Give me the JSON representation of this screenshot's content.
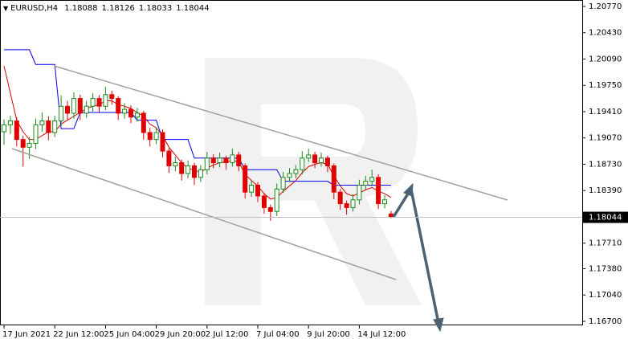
{
  "chart_data": {
    "type": "candlestick",
    "symbol": "EURUSD,H4",
    "up_color": "#1a8a1a",
    "down_color": "#e00000",
    "ylim": [
      1.16648,
      1.20853
    ],
    "yticks": [
      {
        "value": 1.2077,
        "label": "1.20770"
      },
      {
        "value": 1.2043,
        "label": "1.20430"
      },
      {
        "value": 1.2009,
        "label": "1.20090"
      },
      {
        "value": 1.1975,
        "label": "1.19750"
      },
      {
        "value": 1.1941,
        "label": "1.19410"
      },
      {
        "value": 1.1907,
        "label": "1.19070"
      },
      {
        "value": 1.1873,
        "label": "1.18730"
      },
      {
        "value": 1.1839,
        "label": "1.18390"
      },
      {
        "value": 1.1771,
        "label": "1.17710"
      },
      {
        "value": 1.1738,
        "label": "1.17380"
      },
      {
        "value": 1.1704,
        "label": "1.17040"
      },
      {
        "value": 1.167,
        "label": "1.16700"
      }
    ],
    "xticks": [
      {
        "value": 0,
        "label": "17 Jun 2021"
      },
      {
        "value": 8,
        "label": "22 Jun 12:00"
      },
      {
        "value": 16,
        "label": "25 Jun 04:00"
      },
      {
        "value": 24,
        "label": "29 Jun 20:00"
      },
      {
        "value": 32,
        "label": "2 Jul 12:00"
      },
      {
        "value": 40,
        "label": "7 Jul 04:00"
      },
      {
        "value": 48,
        "label": "9 Jul 20:00"
      },
      {
        "value": 56,
        "label": "14 Jul 12:00"
      }
    ],
    "open": [
      1.1915,
      1.1924,
      1.1929,
      1.1905,
      1.1895,
      1.19,
      1.1924,
      1.1929,
      1.1914,
      1.1929,
      1.1948,
      1.1939,
      1.1958,
      1.1939,
      1.1948,
      1.1958,
      1.1948,
      1.1963,
      1.1958,
      1.1939,
      1.1944,
      1.1934,
      1.1939,
      1.1914,
      1.1905,
      1.1914,
      1.189,
      1.1871,
      1.1875,
      1.1861,
      1.1871,
      1.1856,
      1.1866,
      1.1881,
      1.1875,
      1.1881,
      1.1875,
      1.1885,
      1.1871,
      1.1837,
      1.1846,
      1.1832,
      1.1817,
      1.1812,
      1.1841,
      1.1856,
      1.1861,
      1.1866,
      1.1881,
      1.1885,
      1.1875,
      1.1881,
      1.1871,
      1.1837,
      1.1822,
      1.1817,
      1.1827,
      1.1846,
      1.1851,
      1.1856,
      1.1822,
      1.18088
    ],
    "high": [
      1.1931,
      1.1936,
      1.1934,
      1.191,
      1.1908,
      1.1932,
      1.194,
      1.1935,
      1.1936,
      1.1962,
      1.1955,
      1.1966,
      1.1963,
      1.1955,
      1.1965,
      1.1962,
      1.1973,
      1.1968,
      1.1961,
      1.1952,
      1.1949,
      1.1946,
      1.1942,
      1.192,
      1.1921,
      1.1918,
      1.1894,
      1.1883,
      1.1879,
      1.1878,
      1.1875,
      1.1872,
      1.1889,
      1.1886,
      1.1888,
      1.1884,
      1.1893,
      1.1889,
      1.1874,
      1.1853,
      1.185,
      1.1836,
      1.1821,
      1.1848,
      1.1863,
      1.1868,
      1.1872,
      1.189,
      1.1893,
      1.1889,
      1.1888,
      1.1884,
      1.1874,
      1.1841,
      1.1826,
      1.1834,
      1.1853,
      1.1858,
      1.1866,
      1.186,
      1.1833,
      1.18126
    ],
    "low": [
      1.1898,
      1.1912,
      1.1896,
      1.187,
      1.188,
      1.1893,
      1.1915,
      1.1904,
      1.1908,
      1.1922,
      1.193,
      1.1932,
      1.193,
      1.1933,
      1.1941,
      1.194,
      1.1943,
      1.195,
      1.193,
      1.1932,
      1.1926,
      1.1928,
      1.1905,
      1.1896,
      1.1899,
      1.1882,
      1.1862,
      1.1864,
      1.1852,
      1.1855,
      1.1846,
      1.185,
      1.186,
      1.1868,
      1.1869,
      1.1866,
      1.187,
      1.1864,
      1.1829,
      1.1831,
      1.1824,
      1.1809,
      1.18,
      1.1806,
      1.1836,
      1.185,
      1.1855,
      1.186,
      1.1876,
      1.1868,
      1.187,
      1.1863,
      1.1828,
      1.1814,
      1.1808,
      1.1812,
      1.1821,
      1.184,
      1.1845,
      1.1815,
      1.1816,
      1.18033
    ],
    "close": [
      1.1924,
      1.1929,
      1.1905,
      1.1895,
      1.19,
      1.1924,
      1.1929,
      1.1914,
      1.1929,
      1.1948,
      1.1939,
      1.1958,
      1.1939,
      1.1948,
      1.1958,
      1.1948,
      1.1963,
      1.1958,
      1.1939,
      1.1944,
      1.1934,
      1.1939,
      1.1914,
      1.1905,
      1.1914,
      1.189,
      1.1871,
      1.1875,
      1.1861,
      1.1871,
      1.1856,
      1.1866,
      1.1881,
      1.1875,
      1.1881,
      1.1875,
      1.1885,
      1.1871,
      1.1837,
      1.1846,
      1.1832,
      1.1817,
      1.1812,
      1.1841,
      1.1856,
      1.1861,
      1.1866,
      1.1881,
      1.1885,
      1.1875,
      1.1881,
      1.1871,
      1.1837,
      1.1822,
      1.1817,
      1.1827,
      1.1846,
      1.1851,
      1.1856,
      1.1822,
      1.1827,
      1.18044
    ],
    "indicator_lines": [
      {
        "color": "#e00000",
        "values": [
          1.2,
          1.1965,
          1.193,
          1.1915,
          1.1905,
          1.1905,
          1.191,
          1.1915,
          1.1915,
          1.1925,
          1.193,
          1.1935,
          1.194,
          1.1945,
          1.1948,
          1.195,
          1.1955,
          1.1955,
          1.195,
          1.1948,
          1.1945,
          1.194,
          1.1935,
          1.1925,
          1.192,
          1.191,
          1.1895,
          1.1885,
          1.1875,
          1.1868,
          1.1865,
          1.1863,
          1.1868,
          1.1872,
          1.1875,
          1.1876,
          1.1878,
          1.1876,
          1.186,
          1.1852,
          1.1845,
          1.1835,
          1.1828,
          1.183,
          1.1838,
          1.1845,
          1.1852,
          1.1862,
          1.187,
          1.1873,
          1.1875,
          1.1873,
          1.1858,
          1.1845,
          1.1835,
          1.1832,
          1.1836,
          1.184,
          1.1843,
          1.1838,
          1.1835,
          1.183
        ]
      },
      {
        "color": "#0000ee",
        "values": [
          1.2021,
          1.2021,
          1.2021,
          1.2021,
          1.2021,
          1.2002,
          1.2002,
          1.2002,
          1.2002,
          1.1919,
          1.1919,
          1.1919,
          1.194,
          1.194,
          1.194,
          1.194,
          1.194,
          1.194,
          1.194,
          1.194,
          1.194,
          1.193,
          1.193,
          1.193,
          1.193,
          1.1905,
          1.1905,
          1.1905,
          1.1905,
          1.1905,
          1.1881,
          1.1881,
          1.1881,
          1.1881,
          1.1881,
          1.1881,
          1.1881,
          1.1881,
          1.1866,
          1.1866,
          1.1866,
          1.1866,
          1.1866,
          1.1866,
          1.1851,
          1.1851,
          1.1851,
          1.1851,
          1.1851,
          1.1851,
          1.1851,
          1.1851,
          1.1846,
          1.1846,
          1.1846,
          1.1846,
          1.1846,
          1.1846,
          1.1846,
          1.1846,
          1.1846,
          1.1846
        ]
      }
    ]
  }
}
